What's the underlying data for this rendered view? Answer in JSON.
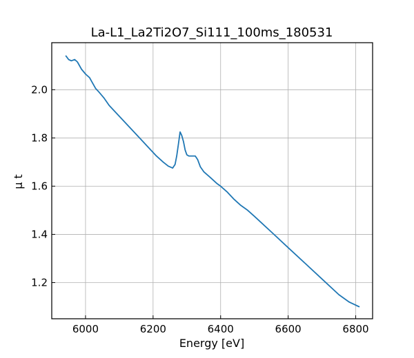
{
  "chart_data": {
    "type": "line",
    "title": "La-L1_La2Ti2O7_Si111_100ms_180531",
    "xlabel": "Energy [eV]",
    "ylabel": "μ t",
    "xlim": [
      5900,
      6850
    ],
    "ylim": [
      1.05,
      2.195
    ],
    "x_ticks": [
      6000,
      6200,
      6400,
      6600,
      6800
    ],
    "y_ticks": [
      1.2,
      1.4,
      1.6,
      1.8,
      2.0
    ],
    "x_tick_labels": [
      "6000",
      "6200",
      "6400",
      "6600",
      "6800"
    ],
    "y_tick_labels": [
      "1.2",
      "1.4",
      "1.6",
      "1.8",
      "2.0"
    ],
    "grid": true,
    "tick_direction": "in",
    "series": [
      {
        "color": "#1f77b4",
        "x": [
          5942,
          5950,
          5958,
          5968,
          5976,
          5988,
          6000,
          6012,
          6020,
          6030,
          6040,
          6055,
          6070,
          6090,
          6110,
          6130,
          6150,
          6170,
          6190,
          6210,
          6230,
          6245,
          6258,
          6265,
          6270,
          6275,
          6280,
          6285,
          6290,
          6295,
          6300,
          6306,
          6315,
          6325,
          6332,
          6340,
          6350,
          6370,
          6390,
          6400,
          6420,
          6440,
          6460,
          6480,
          6500,
          6550,
          6600,
          6650,
          6700,
          6750,
          6780,
          6810
        ],
        "y": [
          2.14,
          2.125,
          2.12,
          2.125,
          2.115,
          2.085,
          2.065,
          2.05,
          2.03,
          2.005,
          1.99,
          1.965,
          1.935,
          1.905,
          1.875,
          1.845,
          1.815,
          1.785,
          1.755,
          1.725,
          1.7,
          1.683,
          1.675,
          1.69,
          1.725,
          1.775,
          1.825,
          1.81,
          1.785,
          1.75,
          1.73,
          1.725,
          1.725,
          1.725,
          1.71,
          1.68,
          1.66,
          1.635,
          1.61,
          1.6,
          1.575,
          1.545,
          1.52,
          1.5,
          1.475,
          1.41,
          1.345,
          1.28,
          1.215,
          1.15,
          1.12,
          1.1
        ]
      }
    ]
  }
}
